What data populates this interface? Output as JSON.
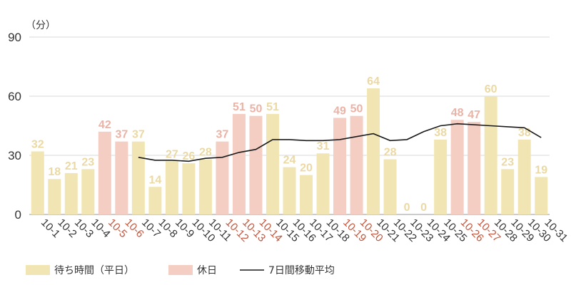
{
  "chart_data": {
    "type": "bar",
    "unit_label": "（分）",
    "y_axis": {
      "ylim": [
        0,
        90
      ],
      "ticks": [
        0,
        30,
        60,
        90
      ]
    },
    "categories": [
      "10-1",
      "10-2",
      "10-3",
      "10-4",
      "10-5",
      "10-6",
      "10-7",
      "10-8",
      "10-9",
      "10-10",
      "10-11",
      "10-12",
      "10-13",
      "10-14",
      "10-15",
      "10-16",
      "10-17",
      "10-18",
      "10-19",
      "10-20",
      "10-21",
      "10-22",
      "10-23",
      "10-24",
      "10-25",
      "10-26",
      "10-27",
      "10-28",
      "10-29",
      "10-30",
      "10-31"
    ],
    "series": [
      {
        "name": "待ち時間（平日）",
        "kind": "bar",
        "color": "#f1e6b3",
        "label_color": "#ebd9a4",
        "values": [
          32,
          18,
          21,
          23,
          null,
          null,
          37,
          14,
          27,
          26,
          28,
          null,
          null,
          null,
          51,
          24,
          20,
          31,
          null,
          null,
          64,
          28,
          0,
          0,
          38,
          null,
          null,
          60,
          23,
          38,
          19
        ]
      },
      {
        "name": "休日",
        "kind": "bar",
        "color": "#f4cdc3",
        "label_color": "#eab3a6",
        "values": [
          null,
          null,
          null,
          null,
          42,
          37,
          null,
          null,
          null,
          null,
          null,
          37,
          51,
          50,
          null,
          null,
          null,
          null,
          49,
          50,
          null,
          null,
          null,
          null,
          null,
          48,
          47,
          null,
          null,
          null,
          null
        ]
      },
      {
        "name": "7日間移動平均",
        "kind": "line",
        "color": "#1a1a1a",
        "values": [
          null,
          null,
          null,
          null,
          null,
          null,
          29.0,
          27.5,
          27.5,
          27.0,
          28.5,
          29.0,
          31.5,
          33.0,
          38.0,
          38.0,
          37.5,
          37.5,
          38.0,
          39.5,
          41.0,
          37.5,
          38.0,
          42.0,
          45.0,
          46.0,
          45.5,
          45.0,
          44.5,
          44.0,
          39.0
        ]
      }
    ],
    "holiday_tick_color": "#c4553d",
    "tick_color": "#333333",
    "grid": true
  }
}
